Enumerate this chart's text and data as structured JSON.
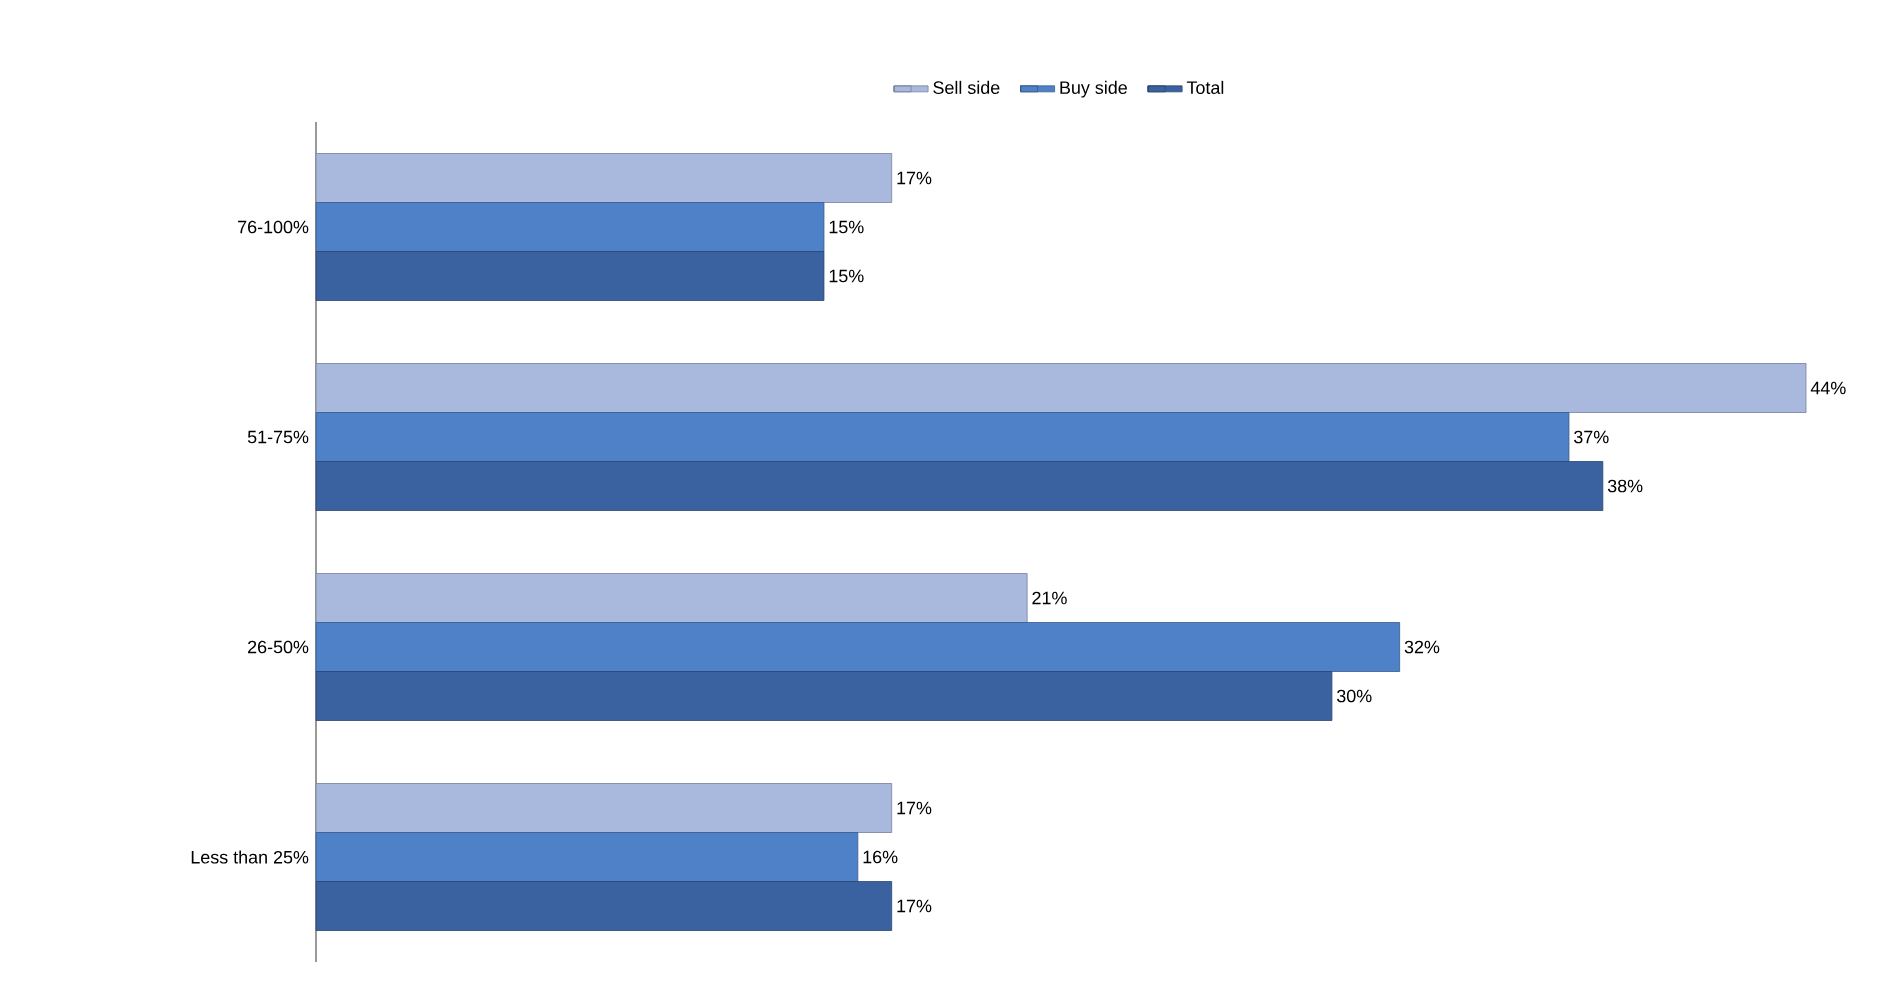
{
  "chart_data": {
    "type": "bar",
    "orientation": "horizontal",
    "categories": [
      "76-100%",
      "51-75%",
      "26-50%",
      "Less than 25%"
    ],
    "series": [
      {
        "name": "Sell side",
        "color": "#a9b9de",
        "values": [
          17,
          44,
          21,
          17
        ],
        "value_labels": [
          "17%",
          "44%",
          "21%",
          "17%"
        ]
      },
      {
        "name": "Buy side",
        "color": "#4f81c8",
        "values": [
          15,
          37,
          32,
          16
        ],
        "value_labels": [
          "15%",
          "37%",
          "32%",
          "16%"
        ]
      },
      {
        "name": "Total",
        "color": "#3b62a0",
        "values": [
          15,
          38,
          30,
          17
        ],
        "value_labels": [
          "15%",
          "38%",
          "30%",
          "17%"
        ]
      }
    ],
    "legend": "top"
  }
}
